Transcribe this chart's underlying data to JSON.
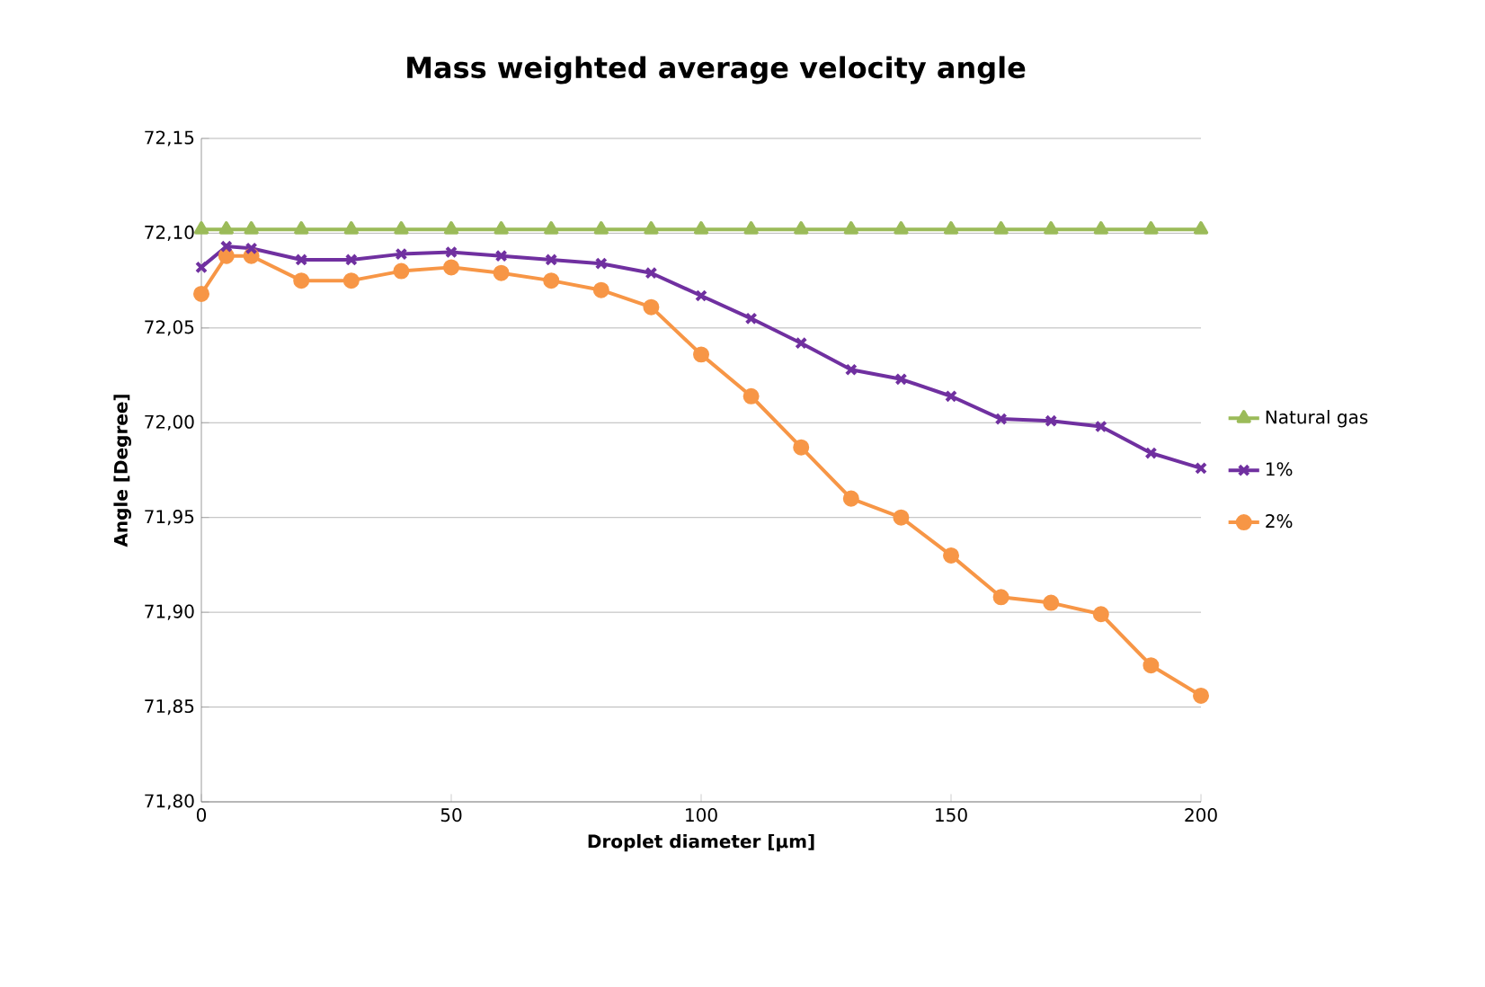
{
  "chart_data": {
    "type": "line",
    "title": "Mass weighted average velocity angle",
    "xlabel": "Droplet diameter [µm]",
    "ylabel": "Angle [Degree]",
    "x": [
      0,
      5,
      10,
      20,
      30,
      40,
      50,
      60,
      70,
      80,
      90,
      100,
      110,
      120,
      130,
      140,
      150,
      160,
      170,
      180,
      190,
      200
    ],
    "series": [
      {
        "name": "Natural gas",
        "color": "#9bbb59",
        "marker": "triangle",
        "values": [
          72.102,
          72.102,
          72.102,
          72.102,
          72.102,
          72.102,
          72.102,
          72.102,
          72.102,
          72.102,
          72.102,
          72.102,
          72.102,
          72.102,
          72.102,
          72.102,
          72.102,
          72.102,
          72.102,
          72.102,
          72.102,
          72.102
        ]
      },
      {
        "name": "1%",
        "color": "#7030a0",
        "marker": "cross",
        "values": [
          72.082,
          72.093,
          72.092,
          72.086,
          72.086,
          72.089,
          72.09,
          72.088,
          72.086,
          72.084,
          72.079,
          72.067,
          72.055,
          72.042,
          72.028,
          72.023,
          72.014,
          72.002,
          72.001,
          71.998,
          71.984,
          71.976
        ]
      },
      {
        "name": "2%",
        "color": "#f79646",
        "marker": "circle",
        "values": [
          72.068,
          72.088,
          72.088,
          72.075,
          72.075,
          72.08,
          72.082,
          72.079,
          72.075,
          72.07,
          72.061,
          72.036,
          72.014,
          71.987,
          71.96,
          71.95,
          71.93,
          71.908,
          71.905,
          71.899,
          71.872,
          71.856
        ]
      }
    ],
    "xlim": [
      0,
      200
    ],
    "xticks": [
      0,
      50,
      100,
      150,
      200
    ],
    "ylim": [
      71.8,
      72.15
    ],
    "yticks": [
      {
        "value": 71.8,
        "label": "71,80"
      },
      {
        "value": 71.85,
        "label": "71,85"
      },
      {
        "value": 71.9,
        "label": "71,90"
      },
      {
        "value": 71.95,
        "label": "71,95"
      },
      {
        "value": 72.0,
        "label": "72,00"
      },
      {
        "value": 72.05,
        "label": "72,05"
      },
      {
        "value": 72.1,
        "label": "72,10"
      },
      {
        "value": 72.15,
        "label": "72,15"
      }
    ],
    "grid": "y",
    "legend": "right"
  }
}
